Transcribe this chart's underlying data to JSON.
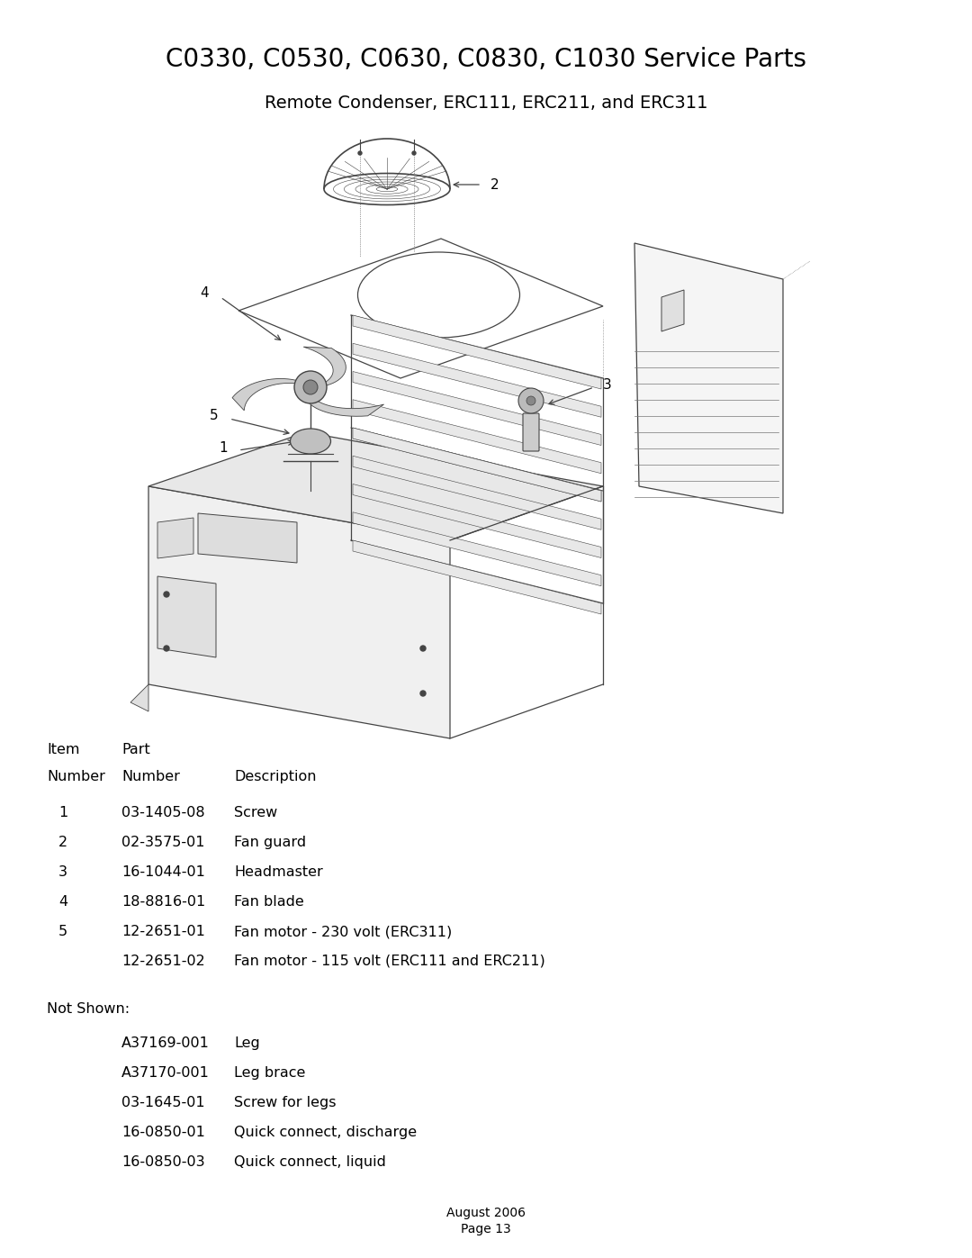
{
  "title": "C0330, C0530, C0630, C0830, C1030 Service Parts",
  "subtitle": "Remote Condenser, ERC111, ERC211, and ERC311",
  "title_fontsize": 20,
  "subtitle_fontsize": 14,
  "bg_color": "#ffffff",
  "text_color": "#000000",
  "table_rows": [
    [
      "1",
      "03-1405-08",
      "Screw"
    ],
    [
      "2",
      "02-3575-01",
      "Fan guard"
    ],
    [
      "3",
      "16-1044-01",
      "Headmaster"
    ],
    [
      "4",
      "18-8816-01",
      "Fan blade"
    ],
    [
      "5",
      "12-2651-01",
      "Fan motor - 230 volt (ERC311)"
    ],
    [
      "",
      "12-2651-02",
      "Fan motor - 115 volt (ERC111 and ERC211)"
    ]
  ],
  "not_shown_label": "Not Shown:",
  "not_shown_rows": [
    [
      "A37169-001",
      "Leg"
    ],
    [
      "A37170-001",
      "Leg brace"
    ],
    [
      "03-1645-01",
      "Screw for legs"
    ],
    [
      "16-0850-01",
      "Quick connect, discharge"
    ],
    [
      "16-0850-03",
      "Quick connect, liquid"
    ]
  ],
  "footer_line1": "August 2006",
  "footer_line2": "Page 13",
  "footer_fontsize": 10,
  "table_fontsize": 11.5
}
